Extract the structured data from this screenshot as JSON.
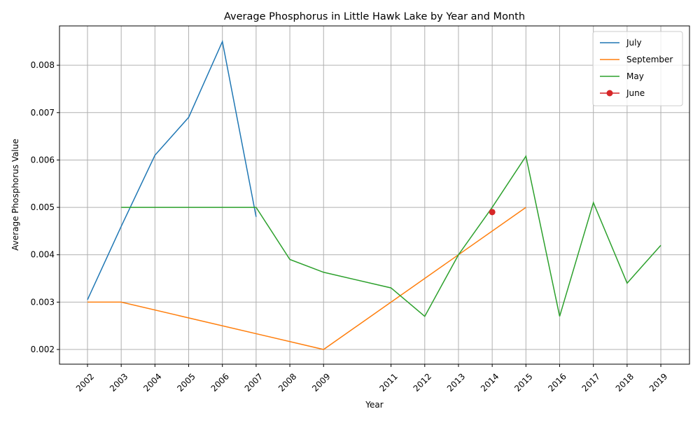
{
  "chart_data": {
    "type": "line",
    "title": "Average Phosphorus in Little Hawk Lake by Year and Month",
    "x_label": "Year",
    "y_label": "Average Phosphorus Value",
    "xlim": [
      2001.17,
      2019.85
    ],
    "ylim": [
      0.00169,
      0.00883
    ],
    "xticks": [
      2002,
      2003,
      2004,
      2005,
      2006,
      2007,
      2008,
      2009,
      2011,
      2012,
      2013,
      2014,
      2015,
      2016,
      2017,
      2018,
      2019
    ],
    "yticks": [
      0.002,
      0.003,
      0.004,
      0.005,
      0.006,
      0.007,
      0.008
    ],
    "grid": true,
    "legend": "upper right",
    "series": [
      {
        "name": "July",
        "color": "#1f77b4",
        "marker": false,
        "x": [
          2002,
          2003,
          2004,
          2005,
          2006,
          2007
        ],
        "values": [
          0.00305,
          0.0046,
          0.0061,
          0.0069,
          0.0085,
          0.0048
        ]
      },
      {
        "name": "September",
        "color": "#ff7f0e",
        "marker": false,
        "x": [
          2002,
          2003,
          2009,
          2015
        ],
        "values": [
          0.003,
          0.003,
          0.002,
          0.005
        ]
      },
      {
        "name": "May",
        "color": "#2ca02c",
        "marker": false,
        "x": [
          2003,
          2007,
          2008,
          2009,
          2011,
          2012,
          2013,
          2014,
          2015,
          2016,
          2017,
          2018,
          2019
        ],
        "values": [
          0.005,
          0.005,
          0.0039,
          0.00363,
          0.0033,
          0.0027,
          0.004,
          0.005,
          0.00608,
          0.0027,
          0.0051,
          0.0034,
          0.0042
        ]
      },
      {
        "name": "June",
        "color": "#d62728",
        "marker": true,
        "x": [
          2014
        ],
        "values": [
          0.0049
        ]
      }
    ]
  }
}
